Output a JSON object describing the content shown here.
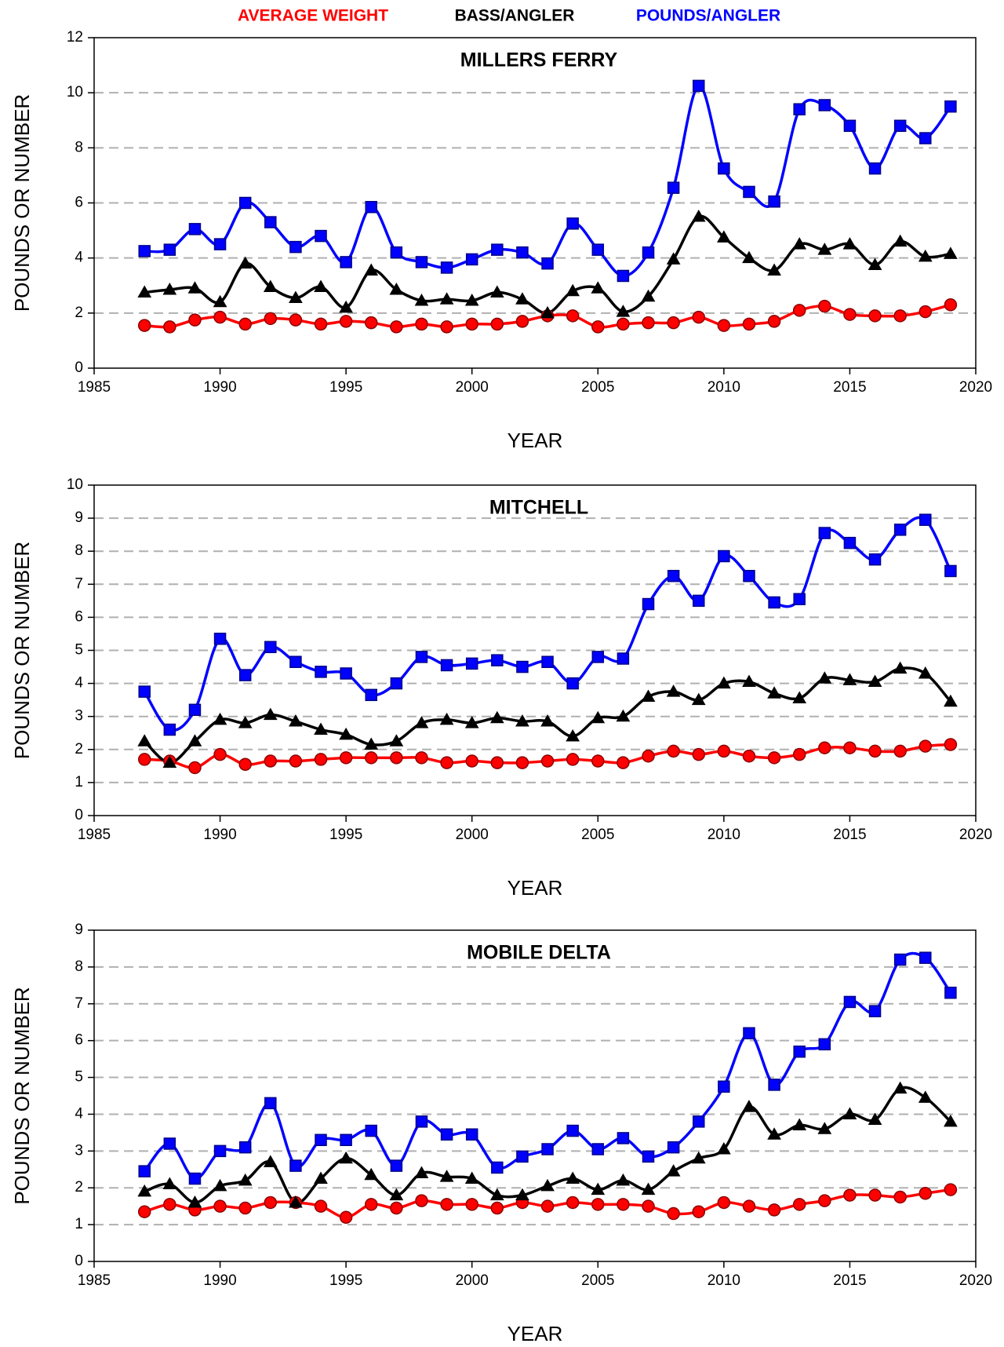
{
  "chart_data": [
    {
      "type": "line",
      "title": "MILLERS FERRY",
      "xlabel": "YEAR",
      "ylabel": "POUNDS OR NUMBER",
      "x": [
        1987,
        1988,
        1989,
        1990,
        1991,
        1992,
        1993,
        1994,
        1995,
        1996,
        1997,
        1998,
        1999,
        2000,
        2001,
        2002,
        2003,
        2004,
        2005,
        2006,
        2007,
        2008,
        2009,
        2010,
        2011,
        2012,
        2013,
        2014,
        2015,
        2016,
        2017,
        2018,
        2019
      ],
      "xlim": [
        1985,
        2020
      ],
      "xticks": [
        1985,
        1990,
        1995,
        2000,
        2005,
        2010,
        2015,
        2020
      ],
      "ylim": [
        0,
        12
      ],
      "yticks": [
        0,
        2,
        4,
        6,
        8,
        10,
        12
      ],
      "grid": true,
      "smooth": true,
      "series": [
        {
          "name": "AVERAGE WEIGHT",
          "color": "#ff0000",
          "marker": "circle",
          "values": [
            1.55,
            1.5,
            1.75,
            1.85,
            1.6,
            1.8,
            1.75,
            1.6,
            1.7,
            1.65,
            1.5,
            1.6,
            1.5,
            1.6,
            1.6,
            1.7,
            1.9,
            1.9,
            1.5,
            1.6,
            1.65,
            1.65,
            1.85,
            1.55,
            1.6,
            1.7,
            2.1,
            2.25,
            1.95,
            1.9,
            1.9,
            2.05,
            2.3
          ]
        },
        {
          "name": "BASS/ANGLER",
          "color": "#000000",
          "marker": "triangle",
          "values": [
            2.75,
            2.85,
            2.9,
            2.4,
            3.8,
            2.95,
            2.55,
            2.95,
            2.2,
            3.55,
            2.85,
            2.45,
            2.5,
            2.45,
            2.75,
            2.5,
            2.0,
            2.8,
            2.9,
            2.05,
            2.6,
            3.95,
            5.5,
            4.75,
            4.0,
            3.55,
            4.5,
            4.3,
            4.5,
            3.75,
            4.6,
            4.05,
            4.15
          ]
        },
        {
          "name": "POUNDS/ANGLER",
          "color": "#0000ff",
          "marker": "square",
          "values": [
            4.25,
            4.3,
            5.05,
            4.5,
            6.0,
            5.3,
            4.4,
            4.8,
            3.85,
            5.85,
            4.2,
            3.85,
            3.65,
            3.95,
            4.3,
            4.2,
            3.8,
            5.25,
            4.3,
            3.35,
            4.2,
            6.55,
            10.25,
            7.25,
            6.4,
            6.05,
            9.4,
            9.55,
            8.8,
            7.25,
            8.8,
            8.35,
            9.5
          ]
        }
      ]
    },
    {
      "type": "line",
      "title": "MITCHELL",
      "xlabel": "YEAR",
      "ylabel": "POUNDS OR NUMBER",
      "x": [
        1987,
        1988,
        1989,
        1990,
        1991,
        1992,
        1993,
        1994,
        1995,
        1996,
        1997,
        1998,
        1999,
        2000,
        2001,
        2002,
        2003,
        2004,
        2005,
        2006,
        2007,
        2008,
        2009,
        2010,
        2011,
        2012,
        2013,
        2014,
        2015,
        2016,
        2017,
        2018,
        2019
      ],
      "xlim": [
        1985,
        2020
      ],
      "xticks": [
        1985,
        1990,
        1995,
        2000,
        2005,
        2010,
        2015,
        2020
      ],
      "ylim": [
        0,
        10
      ],
      "yticks": [
        0,
        1,
        2,
        3,
        4,
        5,
        6,
        7,
        8,
        9,
        10
      ],
      "grid": true,
      "smooth": true,
      "series": [
        {
          "color": "#ff0000",
          "marker": "circle",
          "values": [
            1.7,
            1.65,
            1.45,
            1.85,
            1.55,
            1.65,
            1.65,
            1.7,
            1.75,
            1.75,
            1.75,
            1.75,
            1.6,
            1.65,
            1.6,
            1.6,
            1.65,
            1.7,
            1.65,
            1.6,
            1.8,
            1.95,
            1.85,
            1.95,
            1.8,
            1.75,
            1.85,
            2.05,
            2.05,
            1.95,
            1.95,
            2.1,
            2.15
          ]
        },
        {
          "color": "#000000",
          "marker": "triangle",
          "values": [
            2.25,
            1.6,
            2.25,
            2.9,
            2.8,
            3.05,
            2.85,
            2.6,
            2.45,
            2.15,
            2.25,
            2.8,
            2.9,
            2.8,
            2.95,
            2.85,
            2.85,
            2.4,
            2.95,
            3.0,
            3.6,
            3.75,
            3.5,
            4.0,
            4.05,
            3.7,
            3.55,
            4.15,
            4.1,
            4.05,
            4.45,
            4.3,
            3.45
          ]
        },
        {
          "color": "#0000ff",
          "marker": "square",
          "values": [
            3.75,
            2.6,
            3.2,
            5.35,
            4.25,
            5.1,
            4.65,
            4.35,
            4.3,
            3.65,
            4.0,
            4.8,
            4.55,
            4.6,
            4.7,
            4.5,
            4.65,
            4.0,
            4.8,
            4.75,
            6.4,
            7.25,
            6.5,
            7.85,
            7.25,
            6.45,
            6.55,
            8.55,
            8.25,
            7.75,
            8.65,
            8.95,
            7.4
          ]
        }
      ]
    },
    {
      "type": "line",
      "title": "MOBILE DELTA",
      "xlabel": "YEAR",
      "ylabel": "POUNDS OR NUMBER",
      "x": [
        1987,
        1988,
        1989,
        1990,
        1991,
        1992,
        1993,
        1994,
        1995,
        1996,
        1997,
        1998,
        1999,
        2000,
        2001,
        2002,
        2003,
        2004,
        2005,
        2006,
        2007,
        2008,
        2009,
        2010,
        2011,
        2012,
        2013,
        2014,
        2015,
        2016,
        2017,
        2018,
        2019
      ],
      "xlim": [
        1985,
        2020
      ],
      "xticks": [
        1985,
        1990,
        1995,
        2000,
        2005,
        2010,
        2015,
        2020
      ],
      "ylim": [
        0,
        9
      ],
      "yticks": [
        0,
        1,
        2,
        3,
        4,
        5,
        6,
        7,
        8,
        9
      ],
      "grid": true,
      "smooth": true,
      "series": [
        {
          "color": "#ff0000",
          "marker": "circle",
          "values": [
            1.35,
            1.55,
            1.4,
            1.5,
            1.45,
            1.6,
            1.6,
            1.5,
            1.2,
            1.55,
            1.45,
            1.65,
            1.55,
            1.55,
            1.45,
            1.6,
            1.5,
            1.6,
            1.55,
            1.55,
            1.5,
            1.3,
            1.35,
            1.6,
            1.5,
            1.4,
            1.55,
            1.65,
            1.8,
            1.8,
            1.75,
            1.85,
            1.95
          ]
        },
        {
          "color": "#000000",
          "marker": "triangle",
          "values": [
            1.9,
            2.1,
            1.6,
            2.05,
            2.2,
            2.7,
            1.6,
            2.25,
            2.8,
            2.35,
            1.8,
            2.4,
            2.3,
            2.25,
            1.8,
            1.8,
            2.05,
            2.25,
            1.95,
            2.2,
            1.95,
            2.45,
            2.8,
            3.05,
            4.2,
            3.45,
            3.7,
            3.6,
            4.0,
            3.85,
            4.7,
            4.45,
            3.8
          ]
        },
        {
          "color": "#0000ff",
          "marker": "square",
          "values": [
            2.45,
            3.2,
            2.25,
            3.0,
            3.1,
            4.3,
            2.6,
            3.3,
            3.3,
            3.55,
            2.6,
            3.8,
            3.45,
            3.45,
            2.55,
            2.85,
            3.05,
            3.55,
            3.05,
            3.35,
            2.85,
            3.1,
            3.8,
            4.75,
            6.2,
            4.8,
            5.7,
            5.9,
            7.05,
            6.8,
            8.2,
            8.25,
            7.3
          ]
        }
      ]
    }
  ]
}
